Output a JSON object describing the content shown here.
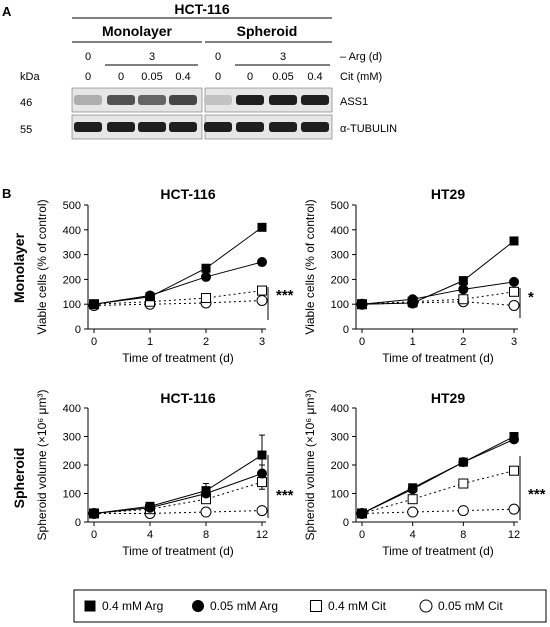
{
  "panel_a": {
    "letter": "A",
    "cell_line": "HCT-116",
    "groups": [
      "Monolayer",
      "Spheroid"
    ],
    "arg_row": {
      "values": [
        "0",
        "3",
        "0",
        "3"
      ],
      "label": "– Arg (d)"
    },
    "kda_label": "kDa",
    "cit_row": {
      "values": [
        "0",
        "0",
        "0.05",
        "0.4",
        "0",
        "0",
        "0.05",
        "0.4"
      ],
      "label": "Cit (mM)"
    },
    "blots": [
      {
        "kda": "46",
        "protein": "ASS1",
        "intensities": [
          0.25,
          0.7,
          0.6,
          0.75,
          0.15,
          0.95,
          0.95,
          0.95
        ]
      },
      {
        "kda": "55",
        "protein": "α-TUBULIN",
        "intensities": [
          0.95,
          0.95,
          0.95,
          0.95,
          0.95,
          0.95,
          0.95,
          0.95
        ]
      }
    ]
  },
  "panel_b": {
    "letter": "B",
    "row_labels": [
      "Monolayer",
      "Spheroid"
    ]
  },
  "chart_data": [
    {
      "type": "line",
      "title": "HCT-116",
      "xlabel": "Time of treatment (d)",
      "ylabel": "Viable cells (% of control)",
      "x": [
        0,
        1,
        2,
        3
      ],
      "xticks": [
        "0",
        "1",
        "2",
        "3"
      ],
      "xlim": [
        0,
        3
      ],
      "ylim": [
        0,
        500
      ],
      "yticks": [
        "0",
        "100",
        "200",
        "300",
        "400",
        "500"
      ],
      "series": [
        {
          "name": "0.4 mM Arg",
          "values": [
            100,
            130,
            245,
            410
          ]
        },
        {
          "name": "0.05 mM Arg",
          "values": [
            100,
            135,
            210,
            270
          ]
        },
        {
          "name": "0.4 mM Cit",
          "values": [
            100,
            110,
            125,
            155
          ]
        },
        {
          "name": "0.05 mM Cit",
          "values": [
            95,
            100,
            105,
            115
          ]
        }
      ],
      "significance": "***"
    },
    {
      "type": "line",
      "title": "HT29",
      "xlabel": "Time of treatment (d)",
      "ylabel": "Viable cells (% of control)",
      "x": [
        0,
        1,
        2,
        3
      ],
      "xticks": [
        "0",
        "1",
        "2",
        "3"
      ],
      "xlim": [
        0,
        3
      ],
      "ylim": [
        0,
        500
      ],
      "yticks": [
        "0",
        "100",
        "200",
        "300",
        "400",
        "500"
      ],
      "series": [
        {
          "name": "0.4 mM Arg",
          "values": [
            100,
            105,
            195,
            355
          ]
        },
        {
          "name": "0.05 mM Arg",
          "values": [
            100,
            120,
            160,
            190
          ]
        },
        {
          "name": "0.4 mM Cit",
          "values": [
            100,
            110,
            120,
            150
          ]
        },
        {
          "name": "0.05 mM Cit",
          "values": [
            100,
            105,
            110,
            95
          ]
        }
      ],
      "significance": "*"
    },
    {
      "type": "line",
      "title": "HCT-116",
      "xlabel": "Time of treatment (d)",
      "ylabel": "Spheroid volume (×10⁶ μm³)",
      "x": [
        0,
        4,
        8,
        12
      ],
      "xticks": [
        "0",
        "4",
        "8",
        "12"
      ],
      "xlim": [
        0,
        12
      ],
      "ylim": [
        0,
        400
      ],
      "yticks": [
        "0",
        "100",
        "200",
        "300",
        "400"
      ],
      "series": [
        {
          "name": "0.4 mM Arg",
          "values": [
            30,
            55,
            110,
            235
          ],
          "errors": [
            0,
            8,
            25,
            70
          ]
        },
        {
          "name": "0.05 mM Arg",
          "values": [
            30,
            50,
            100,
            170
          ],
          "errors": [
            0,
            5,
            15,
            30
          ]
        },
        {
          "name": "0.4 mM Cit",
          "values": [
            30,
            45,
            80,
            140
          ],
          "errors": [
            0,
            5,
            10,
            25
          ]
        },
        {
          "name": "0.05 mM Cit",
          "values": [
            30,
            30,
            35,
            40
          ],
          "errors": [
            0,
            3,
            3,
            5
          ]
        }
      ],
      "significance": "***"
    },
    {
      "type": "line",
      "title": "HT29",
      "xlabel": "Time of treatment (d)",
      "ylabel": "Spheroid volume (×10⁶ μm³)",
      "x": [
        0,
        4,
        8,
        12
      ],
      "xticks": [
        "0",
        "4",
        "8",
        "12"
      ],
      "xlim": [
        0,
        12
      ],
      "ylim": [
        0,
        400
      ],
      "yticks": [
        "0",
        "100",
        "200",
        "300",
        "400"
      ],
      "series": [
        {
          "name": "0.4 mM Arg",
          "values": [
            30,
            120,
            210,
            300
          ],
          "errors": [
            0,
            8,
            8,
            10
          ]
        },
        {
          "name": "0.05 mM Arg",
          "values": [
            30,
            115,
            210,
            290
          ],
          "errors": [
            0,
            8,
            8,
            10
          ]
        },
        {
          "name": "0.4 mM Cit",
          "values": [
            30,
            80,
            135,
            180
          ],
          "errors": [
            0,
            5,
            5,
            8
          ]
        },
        {
          "name": "0.05 mM Cit",
          "values": [
            30,
            35,
            40,
            45
          ],
          "errors": [
            0,
            3,
            3,
            3
          ]
        }
      ],
      "significance": "***"
    }
  ],
  "legend": {
    "items": [
      {
        "label": "0.4 mM Arg",
        "marker": "filled-square"
      },
      {
        "label": "0.05 mM Arg",
        "marker": "filled-circle"
      },
      {
        "label": "0.4 mM Cit",
        "marker": "open-square"
      },
      {
        "label": "0.05 mM Cit",
        "marker": "open-circle"
      }
    ]
  }
}
